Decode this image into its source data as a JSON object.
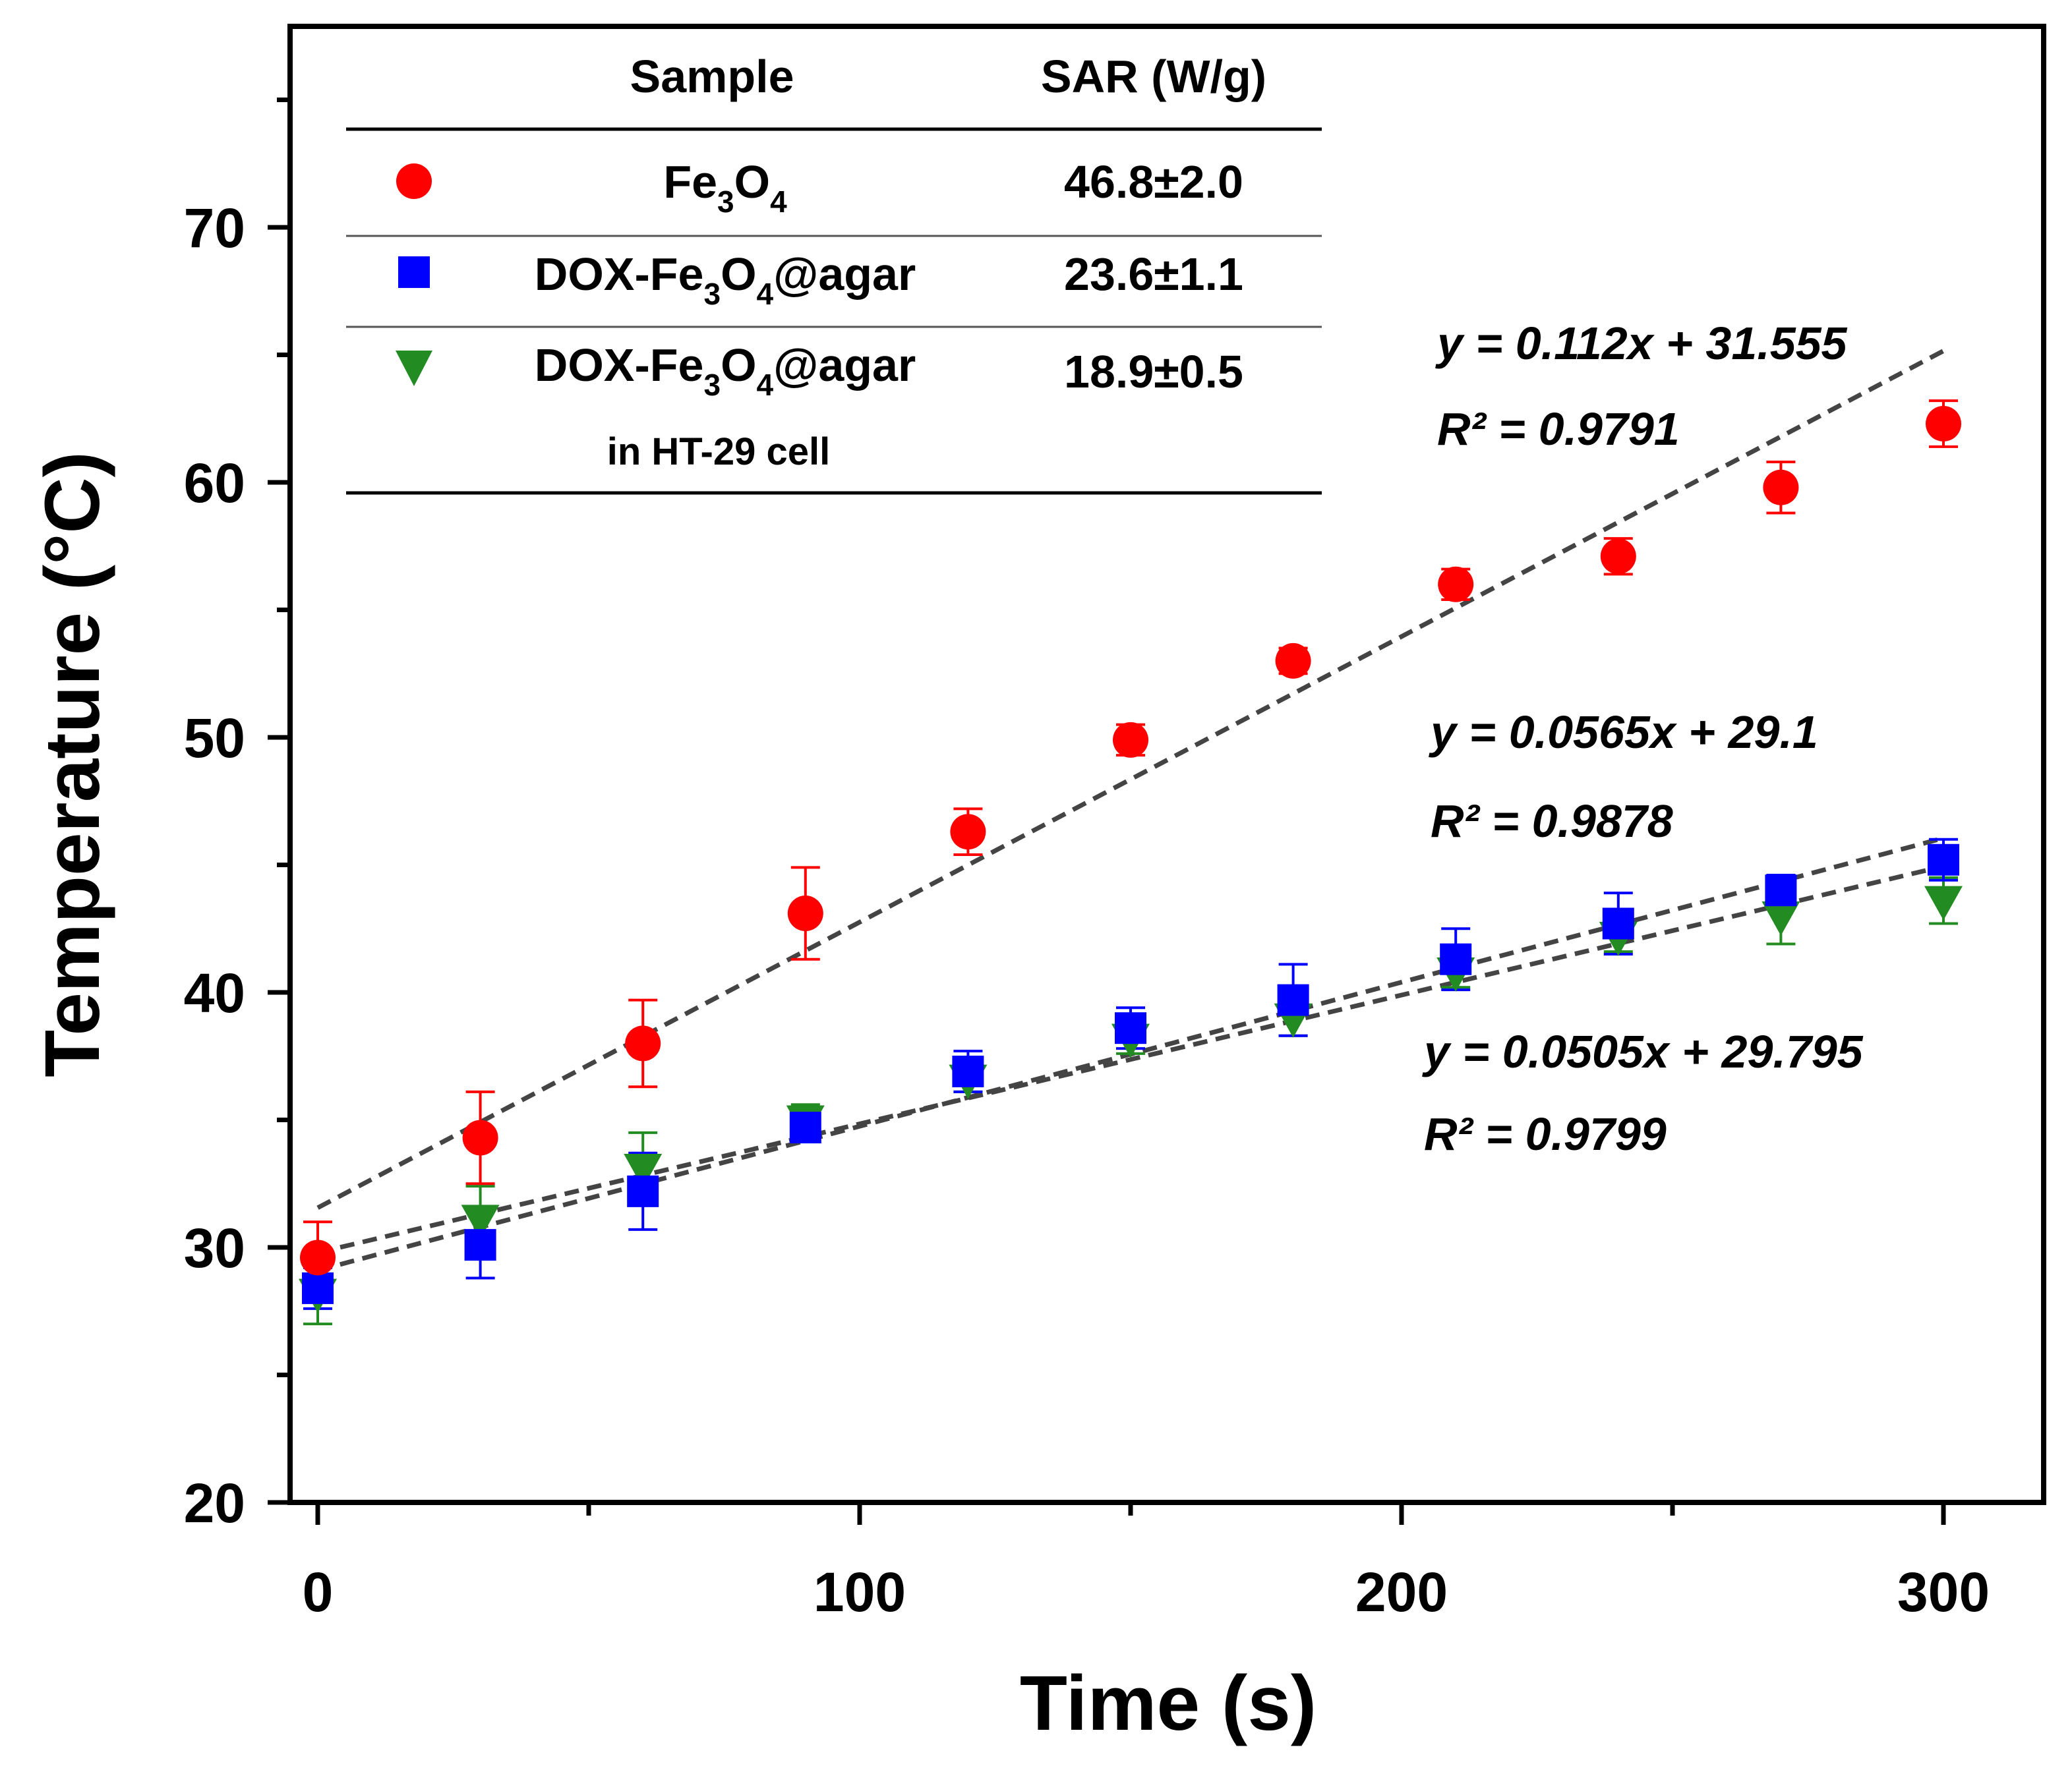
{
  "chart_data": {
    "type": "scatter",
    "xlabel": "Time (s)",
    "ylabel": "Temperature (°C)",
    "xlim": [
      -5,
      315
    ],
    "ylim": [
      20,
      77
    ],
    "xticks": [
      0,
      100,
      200,
      300
    ],
    "yticks": [
      20,
      30,
      40,
      50,
      60,
      70
    ],
    "x": [
      0,
      30,
      60,
      90,
      120,
      150,
      180,
      210,
      240,
      270,
      300
    ],
    "series": [
      {
        "key": "fe3o4",
        "name": "Fe3O4",
        "marker": "circle",
        "color": "#ff0000",
        "values": [
          29.6,
          34.3,
          38.0,
          43.1,
          46.3,
          49.9,
          53.0,
          56.0,
          57.1,
          59.8,
          62.3
        ],
        "errors": [
          1.4,
          1.8,
          1.7,
          1.8,
          0.9,
          0.6,
          0.5,
          0.6,
          0.7,
          1.0,
          0.9
        ],
        "fit": {
          "slope": 0.112,
          "intercept": 31.555,
          "equation": "y = 0.112x + 31.555",
          "r2_label": "R² = 0.9791"
        }
      },
      {
        "key": "dox",
        "name": "DOX-Fe3O4@agar",
        "marker": "square",
        "color": "#0000ff",
        "values": [
          28.4,
          30.1,
          32.2,
          34.7,
          36.9,
          38.6,
          39.7,
          41.3,
          42.7,
          44.0,
          45.2
        ],
        "errors": [
          0.8,
          1.3,
          1.5,
          0.5,
          0.8,
          0.8,
          1.4,
          1.2,
          1.2,
          0.6,
          0.8
        ],
        "fit": {
          "slope": 0.0565,
          "intercept": 29.1,
          "equation": "y = 0.0565x + 29.1",
          "r2_label": "R² = 0.9878"
        }
      },
      {
        "key": "cell",
        "name": "DOX-Fe3O4@agar in HT-29 cell",
        "marker": "triangle-down",
        "color": "#228b22",
        "values": [
          28.2,
          31.1,
          33.1,
          35.0,
          36.6,
          38.2,
          39.0,
          40.8,
          42.2,
          43.0,
          43.6
        ],
        "errors": [
          1.2,
          1.3,
          1.4,
          0.6,
          0.5,
          0.6,
          0.7,
          0.6,
          0.6,
          1.1,
          0.9
        ],
        "fit": {
          "slope": 0.0505,
          "intercept": 29.795,
          "equation": "y = 0.0505x + 29.795",
          "r2_label": "R² = 0.9799"
        }
      }
    ],
    "legend": {
      "placement": "top-left",
      "header_sample": "Sample",
      "header_sar": "SAR (W/g)",
      "rows": [
        {
          "series": "fe3o4",
          "sample_main": "Fe",
          "sub1": "3",
          "mid": "O",
          "sub2": "4",
          "sample_tail": "",
          "sample_line2": "",
          "sar": "46.8±2.0"
        },
        {
          "series": "dox",
          "sample_main": "DOX-Fe",
          "sub1": "3",
          "mid": "O",
          "sub2": "4",
          "sample_tail": "@agar",
          "sample_line2": "",
          "sar": "23.6±1.1"
        },
        {
          "series": "cell",
          "sample_main": "DOX-Fe",
          "sub1": "3",
          "mid": "O",
          "sub2": "4",
          "sample_tail": "@agar",
          "sample_line2": "in HT-29 cell",
          "sar": "18.9±0.5"
        }
      ]
    }
  }
}
